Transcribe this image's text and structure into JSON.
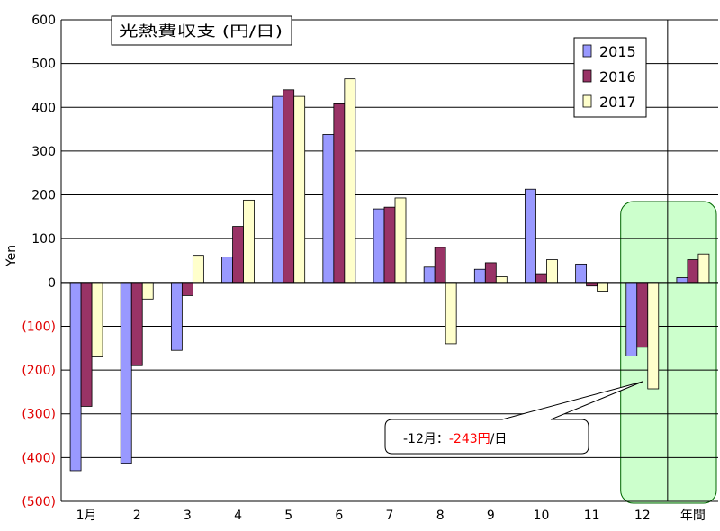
{
  "chart_data": {
    "type": "bar",
    "title": "光熱費収支 (円/日)",
    "xlabel": "",
    "ylabel": "Yen",
    "ylim": [
      -500,
      600
    ],
    "yticks": [
      {
        "value": 600,
        "label": "600",
        "color": "#000000"
      },
      {
        "value": 500,
        "label": "500",
        "color": "#000000"
      },
      {
        "value": 400,
        "label": "400",
        "color": "#000000"
      },
      {
        "value": 300,
        "label": "300",
        "color": "#000000"
      },
      {
        "value": 200,
        "label": "200",
        "color": "#000000"
      },
      {
        "value": 100,
        "label": "100",
        "color": "#000000"
      },
      {
        "value": 0,
        "label": "0",
        "color": "#000000"
      },
      {
        "value": -100,
        "label": "(100)",
        "color": "#e00000"
      },
      {
        "value": -200,
        "label": "(200)",
        "color": "#e00000"
      },
      {
        "value": -300,
        "label": "(300)",
        "color": "#e00000"
      },
      {
        "value": -400,
        "label": "(400)",
        "color": "#e00000"
      },
      {
        "value": -500,
        "label": "(500)",
        "color": "#e00000"
      }
    ],
    "categories": [
      "1月",
      "2",
      "3",
      "4",
      "5",
      "6",
      "7",
      "8",
      "9",
      "10",
      "11",
      "12",
      "年間"
    ],
    "series": [
      {
        "name": "2015",
        "color": "#9999ff",
        "values": [
          -430,
          -413,
          -155,
          58,
          425,
          338,
          168,
          35,
          30,
          213,
          42,
          -168,
          11
        ]
      },
      {
        "name": "2016",
        "color": "#993366",
        "values": [
          -283,
          -190,
          -30,
          128,
          440,
          408,
          172,
          80,
          45,
          20,
          -8,
          -148,
          52
        ]
      },
      {
        "name": "2017",
        "color": "#ffffcc",
        "values": [
          -170,
          -38,
          62,
          188,
          425,
          465,
          193,
          -140,
          13,
          52,
          -20,
          -243,
          65
        ]
      }
    ],
    "grid": true,
    "legend_position": "top-right",
    "annotation": {
      "prefix": "-12月：",
      "value": "-243円",
      "suffix": "/日",
      "value_color": "#ff0000"
    },
    "highlight_categories": [
      "12",
      "年間"
    ],
    "highlight_color": "#ccffcc"
  }
}
